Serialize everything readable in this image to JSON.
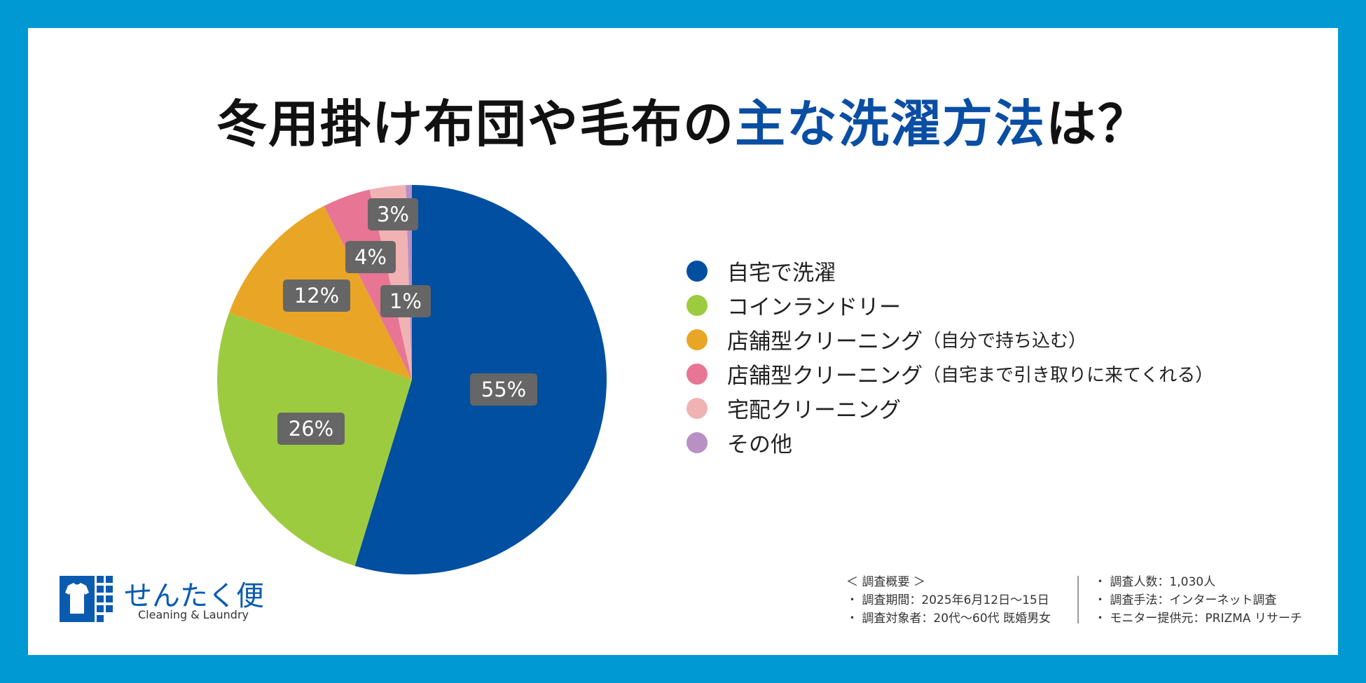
{
  "title": {
    "prefix": "冬用掛け布団や毛布の",
    "highlight": "主な洗濯方法",
    "suffix": "は？"
  },
  "colors": {
    "frame": "#0099d4",
    "title_highlight": "#0a4ea4",
    "label_box": "#666666"
  },
  "chart_data": {
    "type": "pie",
    "start_angle": "12 o'clock",
    "direction": "clockwise",
    "legend_position": "right",
    "slices": [
      {
        "label": "自宅で洗濯",
        "note": "",
        "value": 55,
        "value_label": "55%",
        "color": "#004fa0"
      },
      {
        "label": "コインランドリー",
        "note": "",
        "value": 26,
        "value_label": "26%",
        "color": "#9dcb3f"
      },
      {
        "label": "店舗型クリーニング",
        "note": "（自分で持ち込む）",
        "value": 12,
        "value_label": "12%",
        "color": "#e9a626"
      },
      {
        "label": "店舗型クリーニング",
        "note": "（自宅まで引き取りに来てくれる）",
        "value": 4,
        "value_label": "4%",
        "color": "#e87594"
      },
      {
        "label": "宅配クリーニング",
        "note": "",
        "value": 3,
        "value_label": "3%",
        "color": "#f1b2b4"
      },
      {
        "label": "その他",
        "note": "",
        "value": 0.5,
        "value_label": "1%",
        "color": "#b890c4"
      }
    ]
  },
  "logo": {
    "name": "せんたく便",
    "tagline": "Cleaning & Laundry"
  },
  "survey": {
    "heading": "＜ 調査概要 ＞",
    "col1": [
      "・ 調査期間：2025年6月12日～15日",
      "・ 調査対象者：20代～60代 既婚男女"
    ],
    "col2": [
      "・ 調査人数：1,030人",
      "・ 調査手法：インターネット調査",
      "・ モニター提供元：PRIZMA リサーチ"
    ]
  }
}
